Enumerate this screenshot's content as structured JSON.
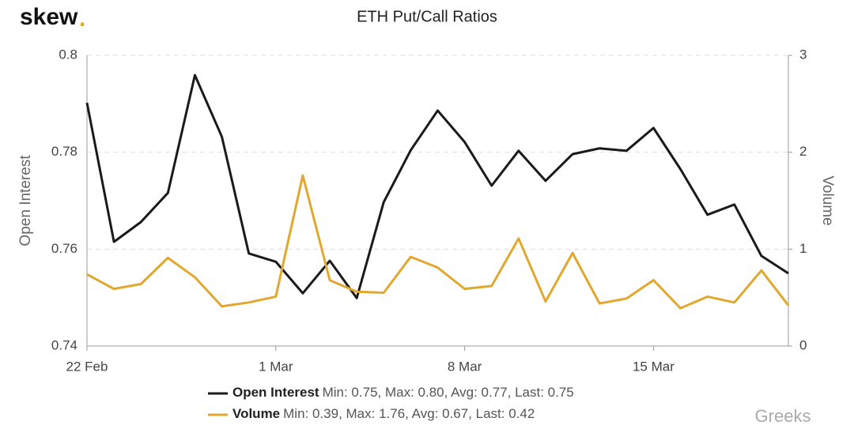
{
  "chart_data": {
    "type": "line",
    "title": "ETH Put/Call Ratios",
    "logo": "skew",
    "logo_dot": ".",
    "watermark": "Greeks",
    "categories": [
      "22 Feb",
      null,
      null,
      null,
      null,
      null,
      null,
      "1 Mar",
      null,
      null,
      null,
      null,
      null,
      null,
      "8 Mar",
      null,
      null,
      null,
      null,
      null,
      null,
      "15 Mar",
      null,
      null,
      null,
      null,
      null
    ],
    "y_label": "Open Interest",
    "y2_label": "Volume",
    "ylim": [
      0.74,
      0.8
    ],
    "yticks": [
      0.74,
      0.76,
      0.78,
      0.8
    ],
    "y2lim": [
      0,
      3
    ],
    "y2ticks": [
      0,
      1,
      2,
      3
    ],
    "grid": true,
    "series": [
      {
        "name": "Open Interest",
        "stats": "Min: 0.75, Max: 0.80, Avg: 0.77, Last: 0.75",
        "color": "#1a1a1a",
        "values": [
          0.7902,
          0.7615,
          0.7656,
          0.7716,
          0.7959,
          0.7832,
          0.7591,
          0.7574,
          0.7509,
          0.7576,
          0.7499,
          0.7697,
          0.7804,
          0.7886,
          0.7821,
          0.7731,
          0.7803,
          0.7741,
          0.7796,
          0.7808,
          0.7803,
          0.785,
          0.7765,
          0.7671,
          0.7692,
          0.7586,
          0.755
        ]
      },
      {
        "name": "Volume",
        "stats": "Min: 0.39, Max: 1.76, Avg: 0.67, Last: 0.42",
        "color": "#e0a82e",
        "axis": "y2",
        "values": [
          0.74,
          0.59,
          0.64,
          0.91,
          0.71,
          0.41,
          0.45,
          0.51,
          1.76,
          0.68,
          0.56,
          0.55,
          0.92,
          0.81,
          0.59,
          0.62,
          1.11,
          0.46,
          0.96,
          0.44,
          0.49,
          0.68,
          0.39,
          0.51,
          0.45,
          0.78,
          0.42
        ]
      }
    ]
  }
}
